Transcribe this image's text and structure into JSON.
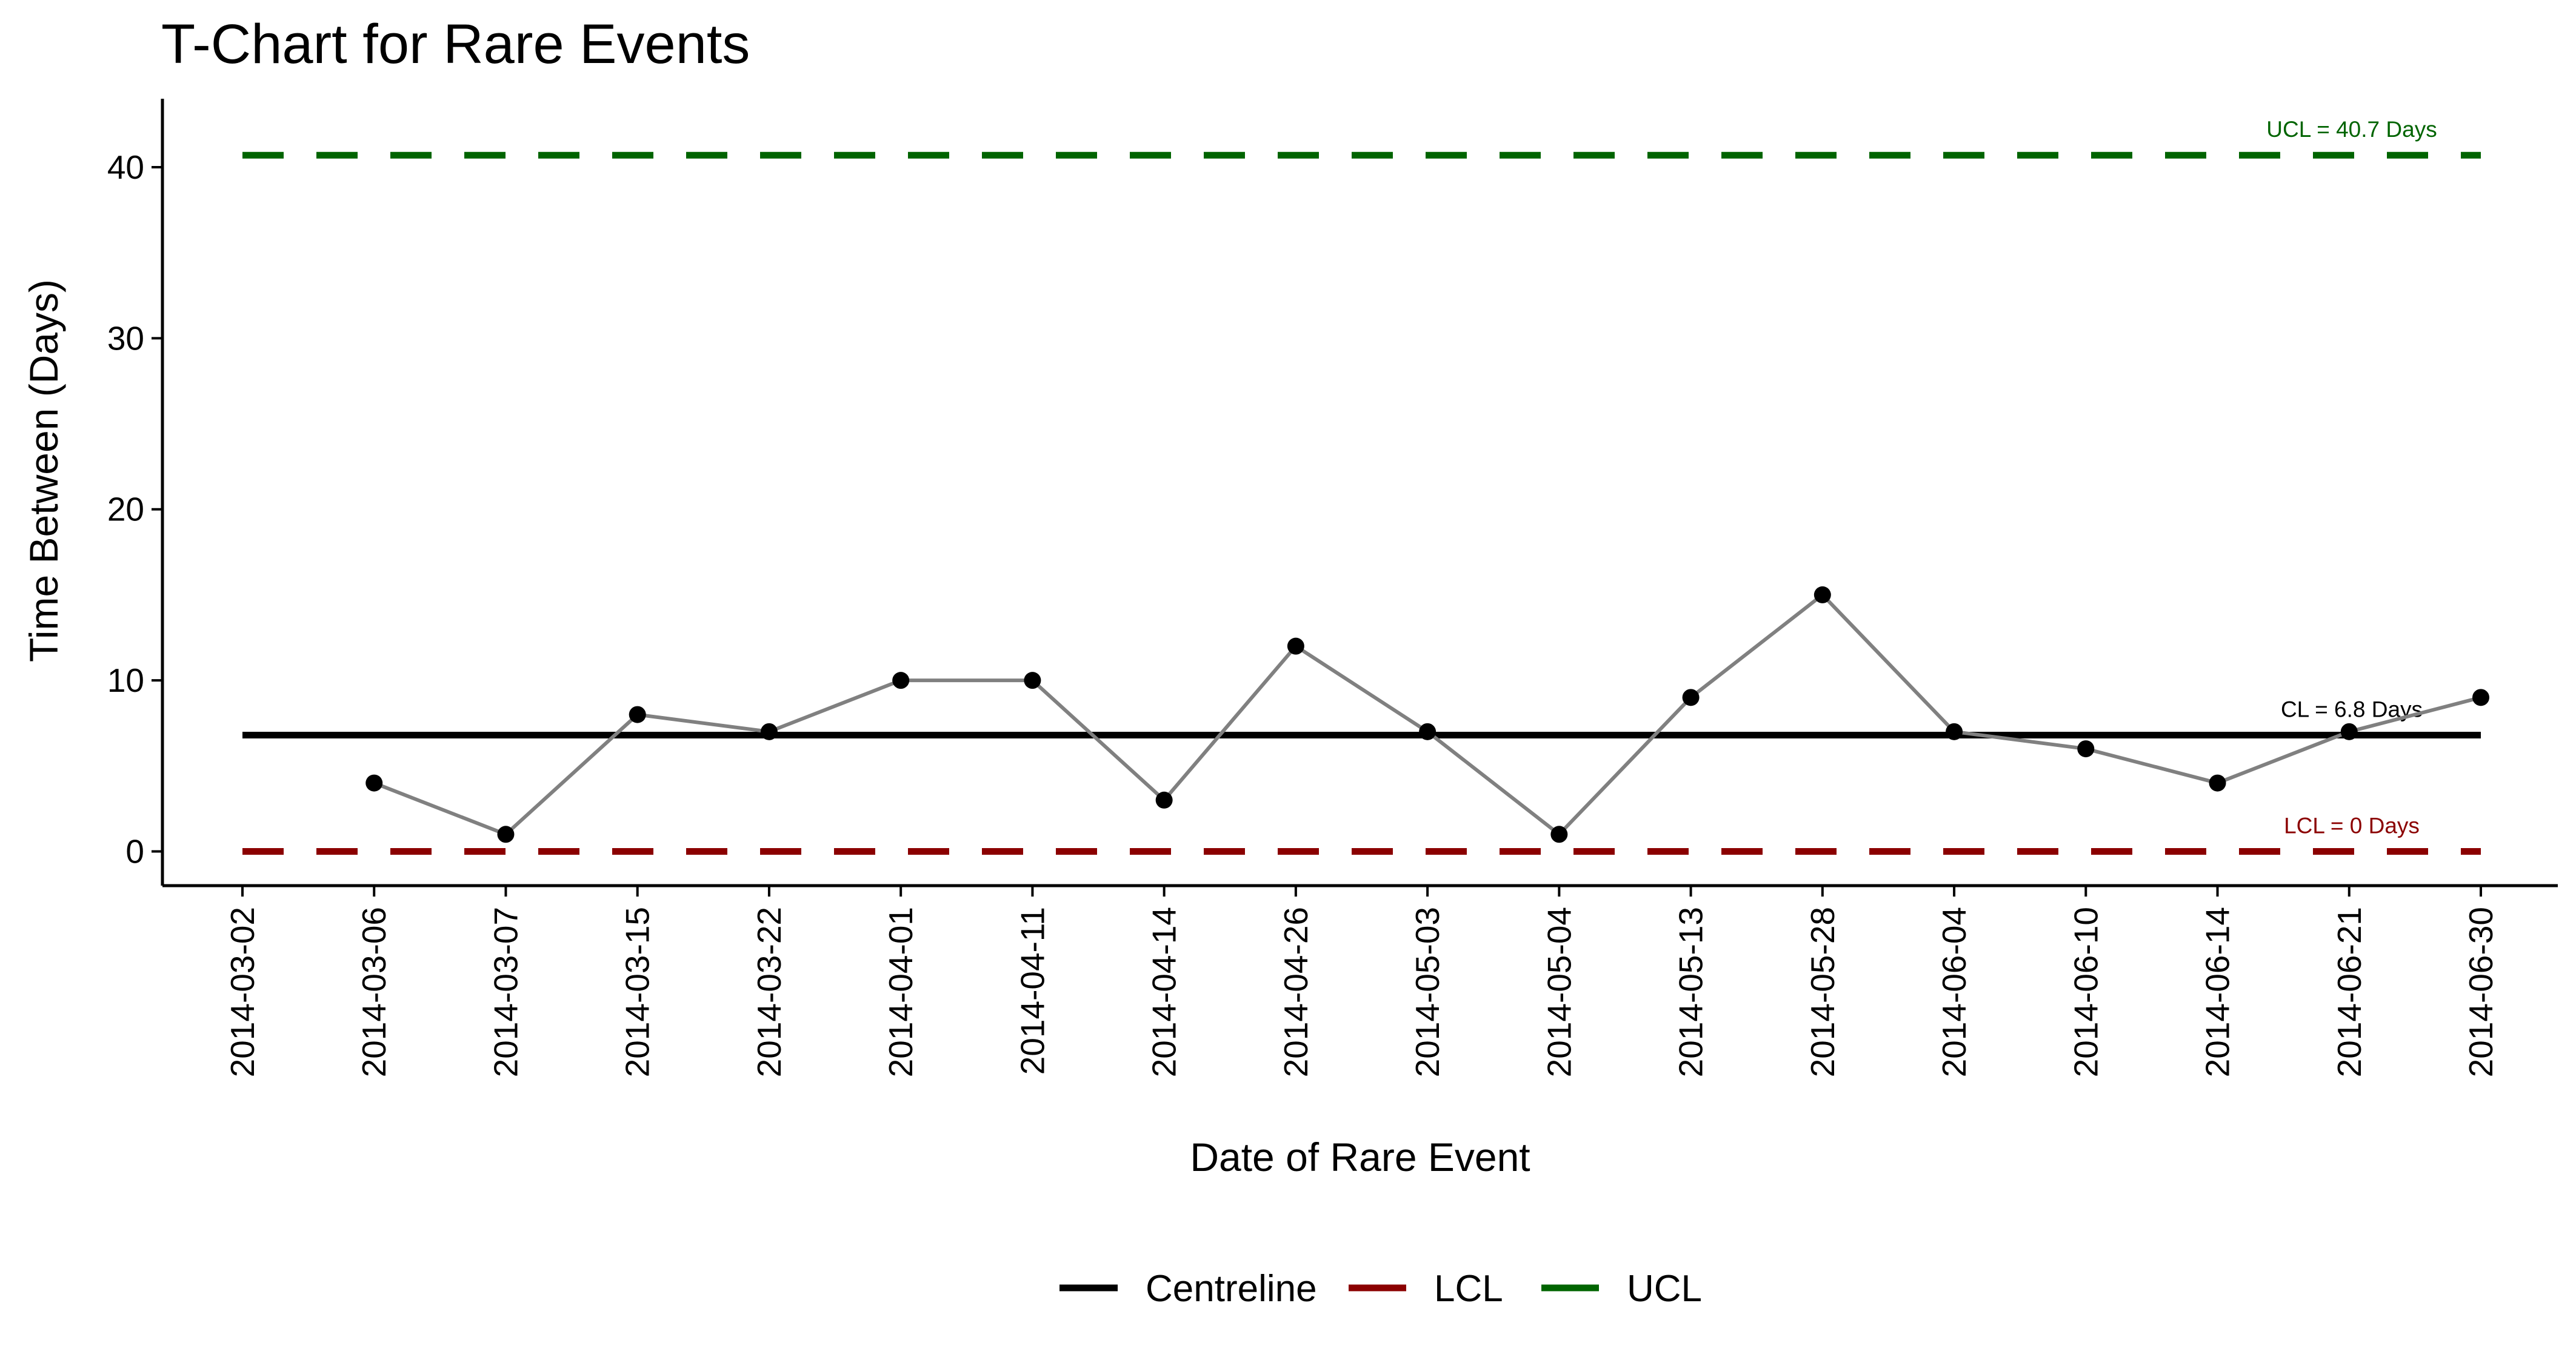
{
  "chart_data": {
    "type": "line",
    "title": "T-Chart for Rare Events",
    "xlabel": "Date of Rare Event",
    "ylabel": "Time Between (Days)",
    "ylim": [
      -2,
      44
    ],
    "yticks": [
      0,
      10,
      20,
      30,
      40
    ],
    "categories": [
      "2014-03-02",
      "2014-03-06",
      "2014-03-07",
      "2014-03-15",
      "2014-03-22",
      "2014-04-01",
      "2014-04-11",
      "2014-04-14",
      "2014-04-26",
      "2014-05-03",
      "2014-05-04",
      "2014-05-13",
      "2014-05-28",
      "2014-06-04",
      "2014-06-10",
      "2014-06-14",
      "2014-06-21",
      "2014-06-30"
    ],
    "series": [
      {
        "values": [
          null,
          4,
          1,
          8,
          7,
          10,
          10,
          3,
          12,
          7,
          1,
          9,
          15,
          7,
          6,
          4,
          7,
          9
        ]
      }
    ],
    "reference_lines": [
      {
        "name": "Centreline",
        "value": 6.8,
        "color": "#000000",
        "style": "solid",
        "label": "CL = 6.8 Days"
      },
      {
        "name": "LCL",
        "value": 0,
        "color": "#8B0000",
        "style": "dashed",
        "label": "LCL = 0 Days"
      },
      {
        "name": "UCL",
        "value": 40.7,
        "color": "#006400",
        "style": "dashed",
        "label": "UCL = 40.7 Days"
      }
    ],
    "legend": {
      "position": "bottom",
      "entries": [
        {
          "label": "Centreline",
          "color": "#000000"
        },
        {
          "label": "LCL",
          "color": "#8B0000"
        },
        {
          "label": "UCL",
          "color": "#006400"
        }
      ]
    },
    "grid": false,
    "series_line_color": "#808080",
    "point_color": "#000000"
  }
}
